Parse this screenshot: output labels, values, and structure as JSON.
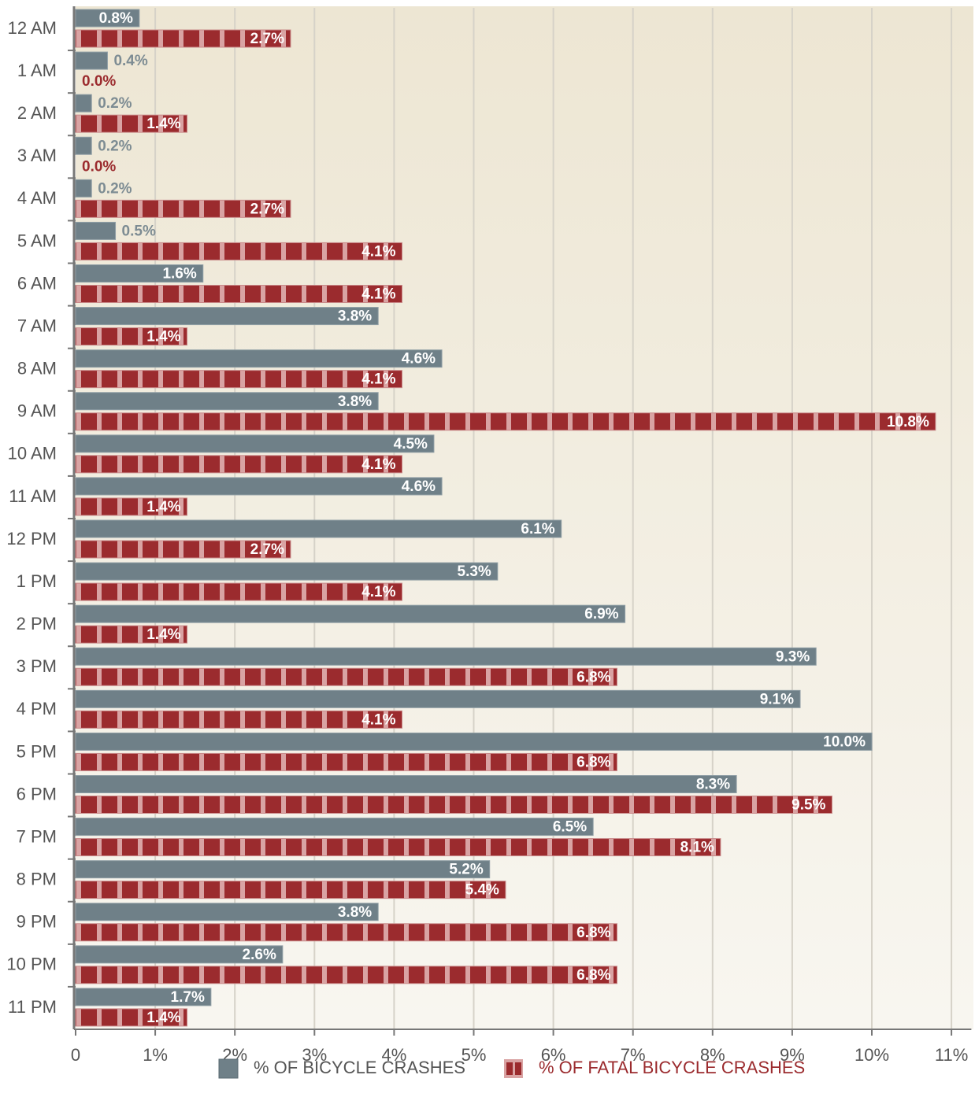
{
  "chart_data": {
    "type": "bar",
    "orientation": "horizontal",
    "categories": [
      "12 AM",
      "1 AM",
      "2 AM",
      "3 AM",
      "4 AM",
      "5 AM",
      "6 AM",
      "7 AM",
      "8 AM",
      "9 AM",
      "10 AM",
      "11 AM",
      "12 PM",
      "1 PM",
      "2 PM",
      "3 PM",
      "4 PM",
      "5 PM",
      "6 PM",
      "7 PM",
      "8 PM",
      "9 PM",
      "10 PM",
      "11 PM"
    ],
    "series": [
      {
        "name": "% OF BICYCLE CRASHES",
        "color": "#6f8088",
        "values": [
          0.8,
          0.4,
          0.2,
          0.2,
          0.2,
          0.5,
          1.6,
          3.8,
          4.6,
          3.8,
          4.5,
          4.6,
          6.1,
          5.3,
          6.9,
          9.3,
          9.1,
          10.0,
          8.3,
          6.5,
          5.2,
          3.8,
          2.6,
          1.7
        ],
        "value_labels": [
          "0.8%",
          "0.4%",
          "0.2%",
          "0.2%",
          "0.2%",
          "0.5%",
          "1.6%",
          "3.8%",
          "4.6%",
          "3.8%",
          "4.5%",
          "4.6%",
          "6.1%",
          "5.3%",
          "6.9%",
          "9.3%",
          "9.1%",
          "10.0%",
          "8.3%",
          "6.5%",
          "5.2%",
          "3.8%",
          "2.6%",
          "1.7%"
        ]
      },
      {
        "name": "% OF FATAL BICYCLE CRASHES",
        "color": "#9b2b2e",
        "values": [
          2.7,
          0.0,
          1.4,
          0.0,
          2.7,
          4.1,
          4.1,
          1.4,
          4.1,
          10.8,
          4.1,
          1.4,
          2.7,
          4.1,
          1.4,
          6.8,
          4.1,
          6.8,
          9.5,
          8.1,
          5.4,
          6.8,
          6.8,
          1.4
        ],
        "value_labels": [
          "2.7%",
          "0.0%",
          "1.4%",
          "0.0%",
          "2.7%",
          "4.1%",
          "4.1%",
          "1.4%",
          "4.1%",
          "10.8%",
          "4.1%",
          "1.4%",
          "2.7%",
          "4.1%",
          "1.4%",
          "6.8%",
          "4.1%",
          "6.8%",
          "9.5%",
          "8.1%",
          "5.4%",
          "6.8%",
          "6.8%",
          "1.4%"
        ]
      }
    ],
    "xlim": [
      0,
      11.25
    ],
    "xticks": [
      0,
      {
        "value": 1,
        "label": "1%"
      },
      {
        "value": 2,
        "label": "2%"
      },
      {
        "value": 3,
        "label": "3%"
      },
      {
        "value": 4,
        "label": "4%"
      },
      {
        "value": 5,
        "label": "5%"
      },
      {
        "value": 6,
        "label": "6%"
      },
      {
        "value": 7,
        "label": "7%"
      },
      {
        "value": 8,
        "label": "8%"
      },
      {
        "value": 9,
        "label": "9%"
      },
      {
        "value": 10,
        "label": "10%"
      },
      {
        "value": 11,
        "label": "11%"
      }
    ],
    "grid": true,
    "legend": "bottom"
  }
}
